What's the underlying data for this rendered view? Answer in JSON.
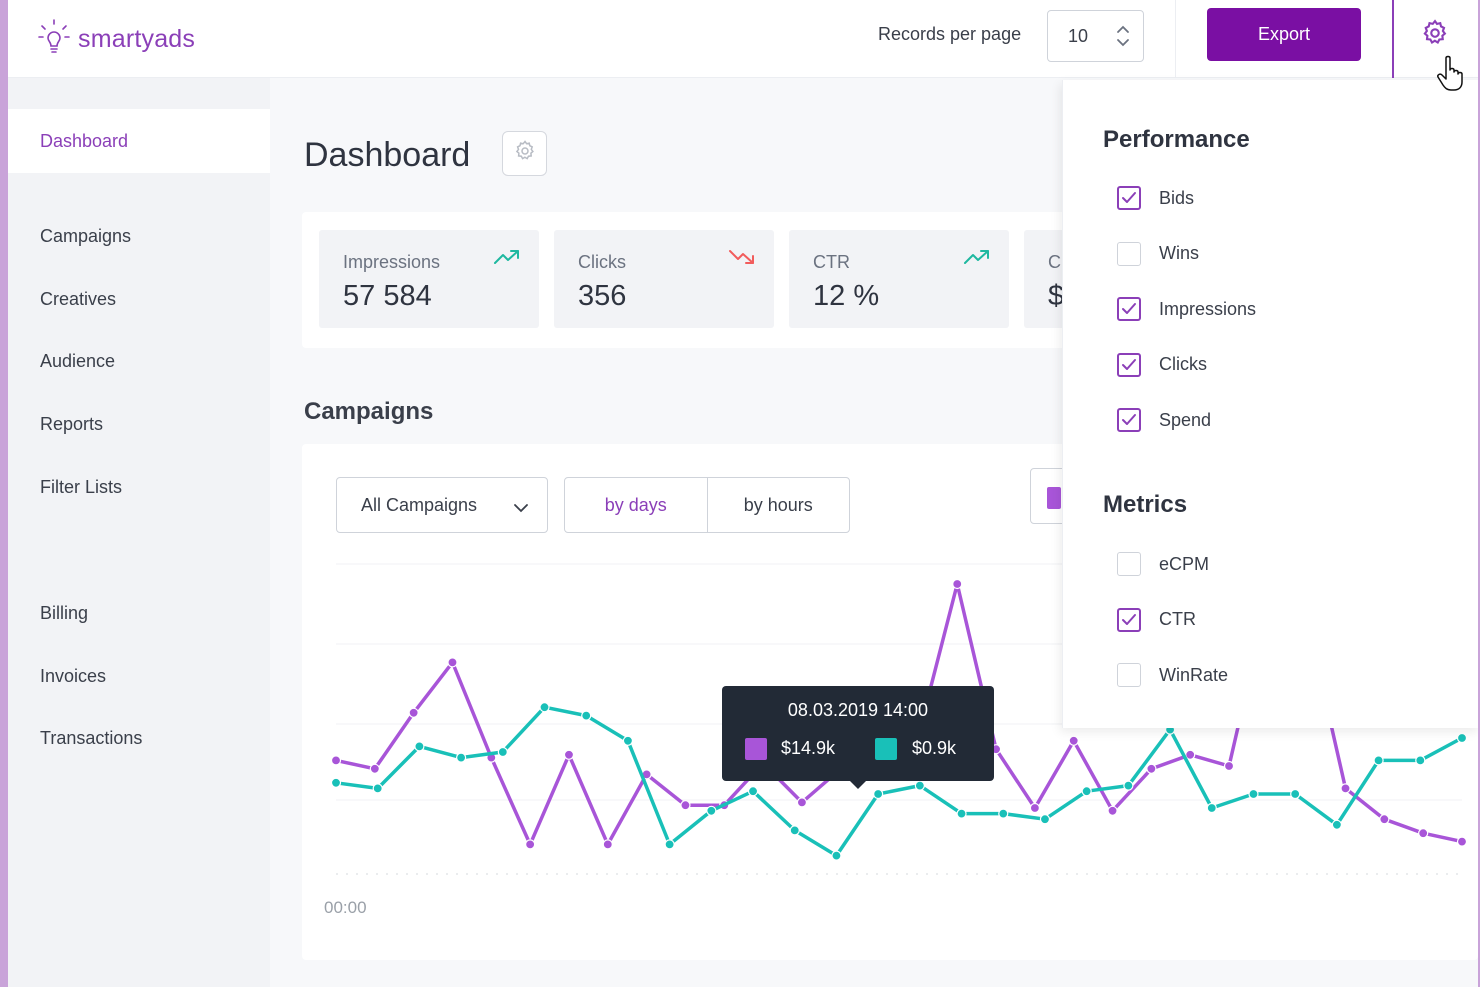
{
  "header": {
    "logo_text": "smartyads",
    "records_per_page_label": "Records per page",
    "records_per_page_value": "10",
    "export_label": "Export"
  },
  "sidebar": {
    "active": "Dashboard",
    "items": [
      "Campaigns",
      "Creatives",
      "Audience",
      "Reports",
      "Filter Lists",
      "Billing",
      "Invoices",
      "Transactions"
    ]
  },
  "main": {
    "title": "Dashboard",
    "stats": [
      {
        "label": "Impressions",
        "value": "57 584",
        "trend": "up"
      },
      {
        "label": "Clicks",
        "value": "356",
        "trend": "down"
      },
      {
        "label": "CTR",
        "value": "12 %",
        "trend": "up"
      },
      {
        "label": "C",
        "value": "$",
        "trend": ""
      }
    ],
    "section_title": "Campaigns",
    "campaign_filter": "All Campaigns",
    "granularity": {
      "by_days": "by days",
      "by_hours": "by hours",
      "active": "by days"
    },
    "x_tick": "00:00",
    "tooltip": {
      "date": "08.03.2019 14:00",
      "purple_value": "$14.9k",
      "teal_value": "$0.9k"
    }
  },
  "colors": {
    "accent": "#7a0fa3",
    "purple_series": "#a855d8",
    "teal_series": "#19c0b8",
    "trend_up": "#1fb8a0",
    "trend_down": "#f25c5c"
  },
  "panel": {
    "performance_title": "Performance",
    "performance": [
      {
        "label": "Bids",
        "checked": true
      },
      {
        "label": "Wins",
        "checked": false
      },
      {
        "label": "Impressions",
        "checked": true
      },
      {
        "label": "Clicks",
        "checked": true
      },
      {
        "label": "Spend",
        "checked": true
      }
    ],
    "metrics_title": "Metrics",
    "metrics": [
      {
        "label": "eCPM",
        "checked": false
      },
      {
        "label": "CTR",
        "checked": true
      },
      {
        "label": "WinRate",
        "checked": false
      }
    ]
  },
  "chart_data": {
    "type": "line",
    "xlabel": "",
    "ylabel": "",
    "x_ticks": [
      "00:00"
    ],
    "series": [
      {
        "color": "#a855d8",
        "values": [
          37,
          34,
          54,
          72,
          38,
          7,
          39,
          7,
          32,
          21,
          21,
          36,
          22,
          34,
          36,
          46,
          100,
          41,
          20,
          44,
          19,
          34,
          39,
          35,
          95,
          88,
          27,
          16,
          11,
          8
        ]
      },
      {
        "color": "#19c0b8",
        "values": [
          29,
          27,
          42,
          38,
          40,
          56,
          53,
          44,
          7,
          19,
          26,
          12,
          3,
          25,
          28,
          18,
          18,
          16,
          26,
          28,
          48,
          20,
          25,
          25,
          14,
          37,
          37,
          45
        ]
      }
    ]
  }
}
